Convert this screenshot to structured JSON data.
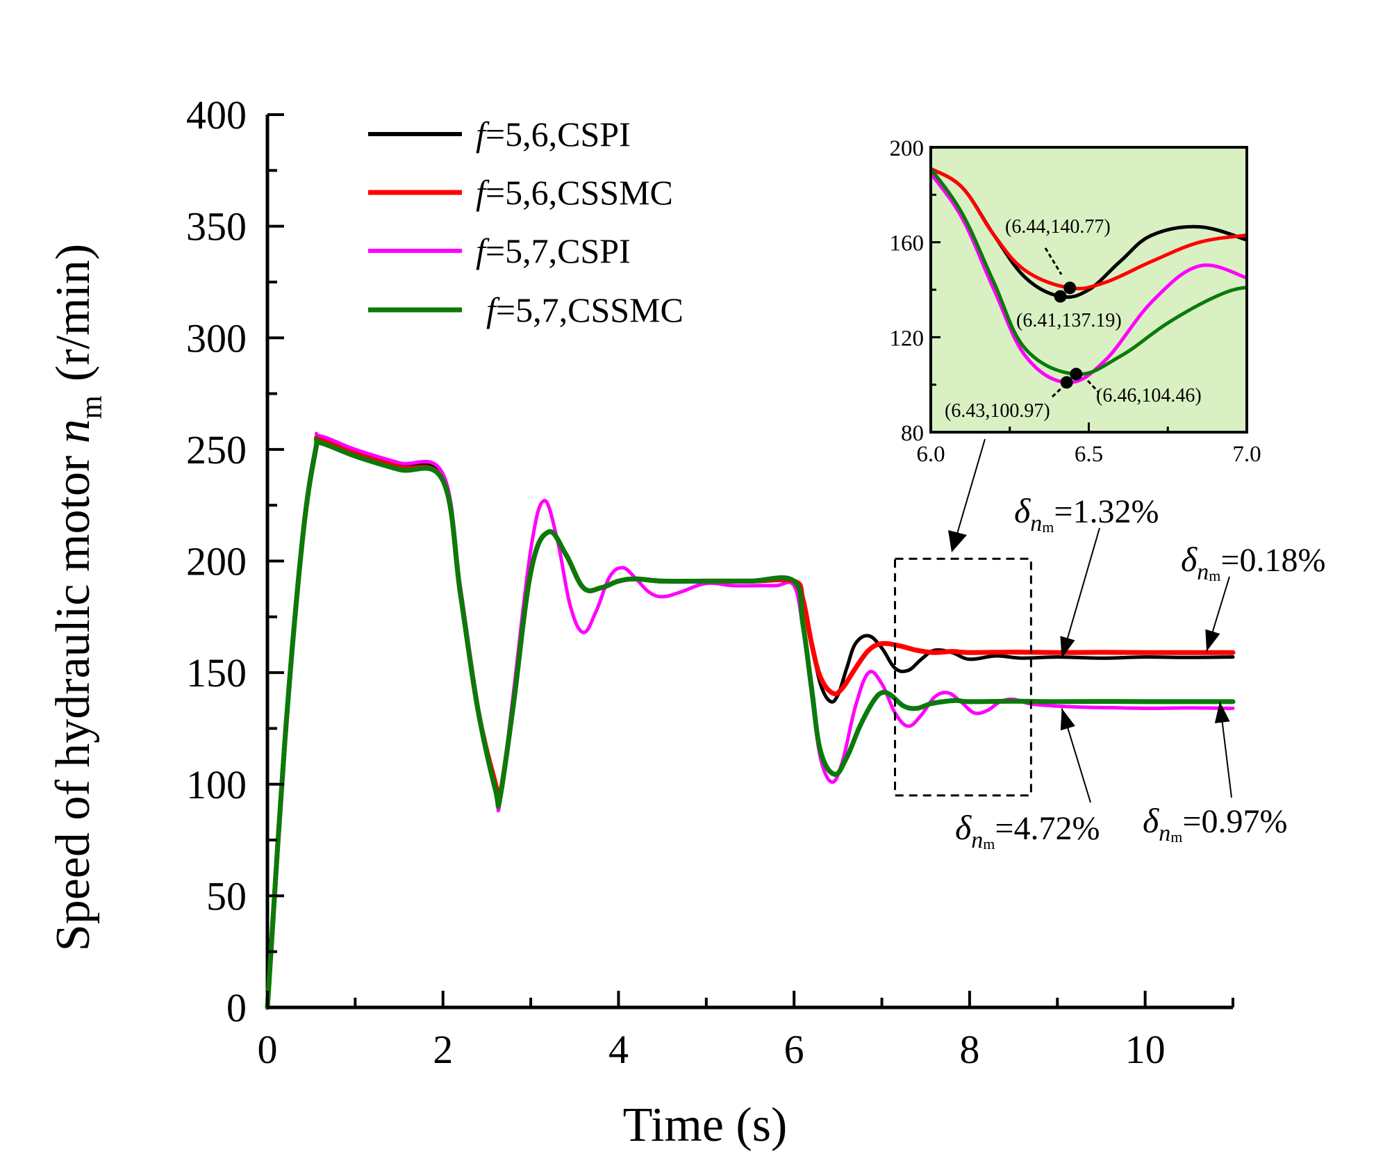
{
  "chart_data": {
    "type": "line",
    "main": {
      "xlabel": "Time (s)",
      "ylabel_prefix": "Speed of hydraulic motor ",
      "ylabel_var": "n",
      "ylabel_sub": "m",
      "ylabel_unit": "(r/min)",
      "xlim": [
        0,
        11
      ],
      "ylim": [
        0,
        400
      ],
      "xticks": [
        "0",
        "2",
        "4",
        "6",
        "8",
        "10"
      ],
      "yticks": [
        "0",
        "50",
        "100",
        "150",
        "200",
        "250",
        "300",
        "350",
        "400"
      ],
      "legend_position": "top-left",
      "series": [
        {
          "id": "s56pi",
          "legend_f": "f",
          "legend_rest": "=5,6,CSPI",
          "color": "#000000",
          "x": [
            0,
            0.2,
            0.4,
            0.55,
            0.6,
            1.0,
            1.5,
            2.0,
            2.2,
            2.4,
            2.6,
            2.65,
            2.8,
            3.0,
            3.2,
            3.4,
            3.6,
            3.8,
            4.0,
            4.2,
            4.5,
            5.0,
            5.5,
            6.0,
            6.1,
            6.2,
            6.3,
            6.41,
            6.5,
            6.6,
            6.7,
            6.85,
            7.0,
            7.15,
            7.3,
            7.45,
            7.6,
            7.8,
            8.0,
            8.3,
            8.6,
            9.0,
            9.5,
            10.0,
            10.5,
            11.0
          ],
          "y": [
            0,
            120,
            210,
            250,
            255,
            249,
            243,
            237,
            185,
            133,
            100,
            95,
            135,
            195,
            213,
            203,
            188,
            188,
            191,
            192,
            191,
            191,
            191,
            191,
            183,
            163,
            145,
            137.19,
            140,
            152,
            163,
            166.5,
            161,
            152,
            151,
            156,
            160,
            159,
            156,
            157.5,
            156.5,
            157,
            156.5,
            157,
            156.8,
            157
          ]
        },
        {
          "id": "s56smc",
          "legend_f": "f",
          "legend_rest": "=5,6,CSSMC",
          "color": "#ff0000",
          "x": [
            0,
            0.2,
            0.4,
            0.55,
            0.6,
            1.0,
            1.5,
            2.0,
            2.2,
            2.4,
            2.6,
            2.65,
            2.8,
            3.0,
            3.2,
            3.4,
            3.6,
            3.8,
            4.0,
            4.2,
            4.5,
            5.0,
            5.5,
            6.0,
            6.1,
            6.2,
            6.3,
            6.44,
            6.55,
            6.7,
            6.85,
            7.0,
            7.2,
            7.4,
            7.6,
            7.8,
            8.0,
            8.5,
            9.0,
            9.5,
            10.0,
            11.0
          ],
          "y": [
            0,
            120,
            210,
            250,
            254,
            248,
            242,
            236,
            185,
            133,
            100,
            95,
            135,
            195,
            213,
            203,
            188,
            188,
            191,
            192,
            191,
            191,
            191,
            191,
            183,
            163,
            148,
            140.77,
            143,
            152,
            160,
            163,
            162,
            160,
            159,
            159.5,
            159,
            159.2,
            159,
            159.1,
            159,
            159
          ]
        },
        {
          "id": "s57pi",
          "legend_f": "f",
          "legend_rest": "=5,7,CSPI",
          "color": "#ff00ff",
          "x": [
            0,
            0.2,
            0.4,
            0.55,
            0.6,
            1.0,
            1.5,
            2.0,
            2.2,
            2.4,
            2.6,
            2.65,
            2.8,
            3.0,
            3.15,
            3.3,
            3.45,
            3.6,
            3.75,
            3.9,
            4.05,
            4.2,
            4.35,
            4.5,
            4.7,
            5.0,
            5.3,
            5.6,
            5.8,
            6.0,
            6.1,
            6.2,
            6.3,
            6.43,
            6.55,
            6.7,
            6.85,
            7.0,
            7.15,
            7.3,
            7.45,
            7.6,
            7.75,
            7.9,
            8.05,
            8.2,
            8.35,
            8.5,
            8.7,
            9.0,
            9.3,
            9.6,
            10.0,
            10.5,
            11.0
          ],
          "y": [
            0,
            120,
            212,
            252,
            256,
            250,
            244,
            239,
            188,
            135,
            97,
            92,
            140,
            205,
            227,
            210,
            180,
            168,
            178,
            193,
            197,
            192,
            186,
            184,
            186,
            190,
            189,
            189,
            189,
            189,
            170,
            140,
            112,
            100.97,
            110,
            135,
            150,
            145,
            132,
            126,
            131,
            139,
            141,
            137,
            132,
            133,
            137,
            138,
            136,
            135,
            134.5,
            134.3,
            134,
            134.2,
            134
          ]
        },
        {
          "id": "s57smc",
          "legend_f": "f",
          "legend_rest": "=5,7,CSSMC",
          "color": "#0a7a0a",
          "x": [
            0,
            0.2,
            0.4,
            0.55,
            0.6,
            1.0,
            1.5,
            2.0,
            2.2,
            2.4,
            2.6,
            2.65,
            2.8,
            3.0,
            3.2,
            3.4,
            3.6,
            3.8,
            4.0,
            4.2,
            4.5,
            5.0,
            5.5,
            6.0,
            6.1,
            6.2,
            6.3,
            6.46,
            6.6,
            6.75,
            6.9,
            7.0,
            7.1,
            7.25,
            7.4,
            7.55,
            7.7,
            7.85,
            8.0,
            8.5,
            9.0,
            9.5,
            10.0,
            11.0
          ],
          "y": [
            0,
            120,
            210,
            250,
            253,
            247,
            241,
            236,
            185,
            133,
            97,
            94,
            135,
            195,
            213,
            203,
            188,
            188,
            191,
            192,
            191,
            191,
            191,
            191,
            172,
            143,
            115,
            104.46,
            112,
            126,
            137,
            141,
            140,
            135,
            134,
            136,
            137,
            137.5,
            137,
            137.2,
            137,
            137.1,
            137,
            137
          ]
        }
      ],
      "zoom_box": {
        "x": [
          7.15,
          8.7
        ],
        "y": [
          95,
          201
        ]
      },
      "annotations": [
        {
          "id": "a1",
          "delta": "δ",
          "sub": "n",
          "subsub": "m",
          "value": "=1.32%",
          "target_x": 9.05,
          "target_y": 156.5
        },
        {
          "id": "a2",
          "delta": "δ",
          "sub": "n",
          "subsub": "m",
          "value": "=0.18%",
          "target_x": 10.7,
          "target_y": 159.5
        },
        {
          "id": "a3",
          "delta": "δ",
          "sub": "n",
          "subsub": "m",
          "value": "=4.72%",
          "target_x": 9.05,
          "target_y": 134
        },
        {
          "id": "a4",
          "delta": "δ",
          "sub": "n",
          "subsub": "m",
          "value": "=0.97%",
          "target_x": 10.85,
          "target_y": 137
        }
      ]
    },
    "inset": {
      "xlim": [
        6.0,
        7.0
      ],
      "ylim": [
        80,
        200
      ],
      "xticks": [
        "6.0",
        "6.5",
        "7.0"
      ],
      "yticks": [
        "80",
        "120",
        "160",
        "200"
      ],
      "background": "#d9f0c3",
      "points": [
        {
          "label": "(6.44,140.77)",
          "x": 6.44,
          "y": 140.77
        },
        {
          "label": "(6.41,137.19)",
          "x": 6.41,
          "y": 137.19
        },
        {
          "label": "(6.43,100.97)",
          "x": 6.43,
          "y": 100.97
        },
        {
          "label": "(6.46,104.46)",
          "x": 6.46,
          "y": 104.46
        }
      ]
    }
  }
}
